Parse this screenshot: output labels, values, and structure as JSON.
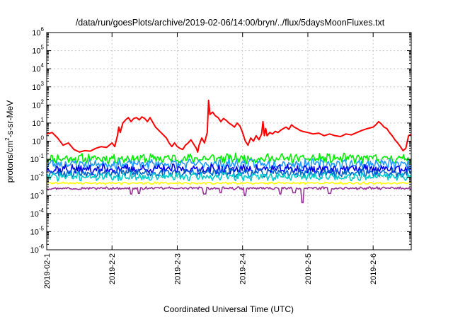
{
  "chart_data": {
    "type": "line",
    "title": "/data/run/goesPlots/archive/2019-02-06/14:00/bryn/../flux/5daysMoonFluxes.txt",
    "xlabel": "Coordinated Universal Time (UTC)",
    "ylabel": "protons/cm²-s-sr-MeV",
    "ylabel_parts": {
      "base": "protons/cm",
      "sup": "2",
      "rest": "-s-sr-MeV"
    },
    "y_scale": "log",
    "ylim": [
      1e-06,
      1000000.0
    ],
    "y_ticks": [
      {
        "value": 1e-06,
        "base": "10",
        "exp": "-6"
      },
      {
        "value": 1e-05,
        "base": "10",
        "exp": "-5"
      },
      {
        "value": 0.0001,
        "base": "10",
        "exp": "-4"
      },
      {
        "value": 0.001,
        "base": "10",
        "exp": "-3"
      },
      {
        "value": 0.01,
        "base": "10",
        "exp": "-2"
      },
      {
        "value": 0.1,
        "base": "10",
        "exp": "-1"
      },
      {
        "value": 1,
        "base": "10",
        "exp": "0"
      },
      {
        "value": 10,
        "base": "10",
        "exp": "1"
      },
      {
        "value": 100,
        "base": "10",
        "exp": "2"
      },
      {
        "value": 1000,
        "base": "10",
        "exp": "3"
      },
      {
        "value": 10000,
        "base": "10",
        "exp": "4"
      },
      {
        "value": 100000,
        "base": "10",
        "exp": "5"
      },
      {
        "value": 1000000,
        "base": "10",
        "exp": "6"
      }
    ],
    "xlim": [
      "2019-02-01",
      "2019-02-06T14:00"
    ],
    "x_ticks": [
      {
        "value": "2019-02-01",
        "label": "2019-02-1"
      },
      {
        "value": "2019-02-02",
        "label": "2019-2-2"
      },
      {
        "value": "2019-02-03",
        "label": "2019-2-3"
      },
      {
        "value": "2019-02-04",
        "label": "2019-2-4"
      },
      {
        "value": "2019-02-05",
        "label": "2019-2-5"
      },
      {
        "value": "2019-02-06",
        "label": "2019-2-6"
      }
    ],
    "grid": true,
    "legend": "none",
    "series": [
      {
        "color": "#ff0000",
        "width": 2,
        "points": [
          [
            "2019-02-01T00:00",
            2.5
          ],
          [
            "2019-02-01T02:00",
            3.0
          ],
          [
            "2019-02-01T04:00",
            1.5
          ],
          [
            "2019-02-01T06:00",
            0.6
          ],
          [
            "2019-02-01T08:00",
            0.8
          ],
          [
            "2019-02-01T10:00",
            0.35
          ],
          [
            "2019-02-01T12:00",
            0.25
          ],
          [
            "2019-02-01T14:00",
            0.3
          ],
          [
            "2019-02-01T16:00",
            0.28
          ],
          [
            "2019-02-01T18:00",
            0.4
          ],
          [
            "2019-02-01T20:00",
            0.5
          ],
          [
            "2019-02-01T22:00",
            0.45
          ],
          [
            "2019-02-02T00:00",
            0.8
          ],
          [
            "2019-02-02T01:00",
            0.5
          ],
          [
            "2019-02-02T02:00",
            2.0
          ],
          [
            "2019-02-02T02:30",
            6.0
          ],
          [
            "2019-02-02T03:00",
            3.0
          ],
          [
            "2019-02-02T04:00",
            10.0
          ],
          [
            "2019-02-02T05:00",
            15.0
          ],
          [
            "2019-02-02T06:00",
            20.0
          ],
          [
            "2019-02-02T07:00",
            12.0
          ],
          [
            "2019-02-02T08:00",
            18.0
          ],
          [
            "2019-02-02T09:00",
            20.0
          ],
          [
            "2019-02-02T10:00",
            15.0
          ],
          [
            "2019-02-02T11:00",
            22.0
          ],
          [
            "2019-02-02T12:00",
            18.0
          ],
          [
            "2019-02-02T13:00",
            12.0
          ],
          [
            "2019-02-02T14:00",
            20.0
          ],
          [
            "2019-02-02T16:00",
            6.0
          ],
          [
            "2019-02-02T18:00",
            3.0
          ],
          [
            "2019-02-02T20:00",
            1.5
          ],
          [
            "2019-02-02T21:00",
            0.8
          ],
          [
            "2019-02-02T22:00",
            0.5
          ],
          [
            "2019-02-02T23:00",
            0.8
          ],
          [
            "2019-02-03T00:00",
            0.5
          ],
          [
            "2019-02-03T01:00",
            0.4
          ],
          [
            "2019-02-03T02:00",
            0.35
          ],
          [
            "2019-02-03T03:00",
            0.6
          ],
          [
            "2019-02-03T04:00",
            0.8
          ],
          [
            "2019-02-03T05:00",
            1.2
          ],
          [
            "2019-02-03T06:00",
            0.7
          ],
          [
            "2019-02-03T07:00",
            0.4
          ],
          [
            "2019-02-03T07:30",
            0.25
          ],
          [
            "2019-02-03T08:00",
            0.6
          ],
          [
            "2019-02-03T09:00",
            1.5
          ],
          [
            "2019-02-03T10:00",
            0.8
          ],
          [
            "2019-02-03T11:00",
            3.0
          ],
          [
            "2019-02-03T11:30",
            180.0
          ],
          [
            "2019-02-03T12:00",
            30.0
          ],
          [
            "2019-02-03T13:00",
            40.0
          ],
          [
            "2019-02-03T14:00",
            25.0
          ],
          [
            "2019-02-03T15:00",
            20.0
          ],
          [
            "2019-02-03T16:00",
            12.0
          ],
          [
            "2019-02-03T17:00",
            18.0
          ],
          [
            "2019-02-03T18:00",
            14.0
          ],
          [
            "2019-02-03T19:00",
            10.0
          ],
          [
            "2019-02-03T20:00",
            8.0
          ],
          [
            "2019-02-03T21:00",
            6.0
          ],
          [
            "2019-02-03T22:00",
            10.0
          ],
          [
            "2019-02-03T23:00",
            7.0
          ],
          [
            "2019-02-04T00:00",
            3.0
          ],
          [
            "2019-02-04T01:00",
            1.0
          ],
          [
            "2019-02-04T02:00",
            0.6
          ],
          [
            "2019-02-04T03:00",
            1.5
          ],
          [
            "2019-02-04T04:00",
            1.0
          ],
          [
            "2019-02-04T05:00",
            2.0
          ],
          [
            "2019-02-04T06:00",
            1.2
          ],
          [
            "2019-02-04T07:00",
            2.5
          ],
          [
            "2019-02-04T07:30",
            12.0
          ],
          [
            "2019-02-04T08:00",
            2.0
          ],
          [
            "2019-02-04T08:30",
            5.0
          ],
          [
            "2019-02-04T09:00",
            2.0
          ],
          [
            "2019-02-04T10:00",
            3.0
          ],
          [
            "2019-02-04T11:00",
            2.5
          ],
          [
            "2019-02-04T12:00",
            3.5
          ],
          [
            "2019-02-04T13:00",
            3.0
          ],
          [
            "2019-02-04T14:00",
            4.0
          ],
          [
            "2019-02-04T15:00",
            5.0
          ],
          [
            "2019-02-04T16:00",
            6.0
          ],
          [
            "2019-02-04T17:00",
            4.5
          ],
          [
            "2019-02-04T18:00",
            8.0
          ],
          [
            "2019-02-04T19:00",
            6.0
          ],
          [
            "2019-02-04T20:00",
            5.0
          ],
          [
            "2019-02-04T21:00",
            4.0
          ],
          [
            "2019-02-04T22:00",
            3.5
          ],
          [
            "2019-02-05T00:00",
            3.0
          ],
          [
            "2019-02-05T02:00",
            2.5
          ],
          [
            "2019-02-05T04:00",
            2.8
          ],
          [
            "2019-02-05T06:00",
            2.0
          ],
          [
            "2019-02-05T08:00",
            2.5
          ],
          [
            "2019-02-05T10:00",
            2.0
          ],
          [
            "2019-02-05T12:00",
            1.8
          ],
          [
            "2019-02-05T14:00",
            2.5
          ],
          [
            "2019-02-05T16:00",
            2.2
          ],
          [
            "2019-02-05T18:00",
            3.0
          ],
          [
            "2019-02-05T20:00",
            4.0
          ],
          [
            "2019-02-05T22:00",
            5.0
          ],
          [
            "2019-02-06T00:00",
            6.0
          ],
          [
            "2019-02-06T01:00",
            8.0
          ],
          [
            "2019-02-06T02:00",
            12.0
          ],
          [
            "2019-02-06T03:00",
            9.0
          ],
          [
            "2019-02-06T04:00",
            6.0
          ],
          [
            "2019-02-06T05:00",
            5.0
          ],
          [
            "2019-02-06T06:00",
            3.0
          ],
          [
            "2019-02-06T07:00",
            2.0
          ],
          [
            "2019-02-06T08:00",
            1.2
          ],
          [
            "2019-02-06T09:00",
            0.8
          ],
          [
            "2019-02-06T10:00",
            0.5
          ],
          [
            "2019-02-06T11:00",
            0.3
          ],
          [
            "2019-02-06T12:00",
            0.4
          ],
          [
            "2019-02-06T13:00",
            2.0
          ],
          [
            "2019-02-06T14:00",
            2.5
          ]
        ]
      },
      {
        "color": "#00ee00",
        "width": 1.6,
        "base": 0.11,
        "jitter": 0.22,
        "seed": 11,
        "dips": []
      },
      {
        "color": "#2299ff",
        "width": 1.6,
        "base": 0.055,
        "jitter": 0.22,
        "seed": 23,
        "dips": []
      },
      {
        "color": "#0000ee",
        "width": 1.6,
        "base": 0.028,
        "jitter": 0.22,
        "seed": 37,
        "dips": []
      },
      {
        "color": "#0066cc",
        "width": 1.6,
        "base": 0.018,
        "jitter": 0.2,
        "seed": 53,
        "dips": []
      },
      {
        "color": "#00cccc",
        "width": 1.6,
        "base": 0.011,
        "jitter": 0.18,
        "seed": 71,
        "dips": []
      },
      {
        "color": "#ffff00",
        "width": 1.6,
        "base": 0.0048,
        "jitter": 0.05,
        "seed": 89,
        "dips": []
      },
      {
        "color": "#993399",
        "width": 1.6,
        "base": 0.0025,
        "jitter": 0.06,
        "seed": 97,
        "dips": [
          [
            "2019-02-02T07:00",
            0.0012
          ],
          [
            "2019-02-02T10:00",
            0.0013
          ],
          [
            "2019-02-03T10:00",
            0.0012
          ],
          [
            "2019-02-03T16:00",
            0.0014
          ],
          [
            "2019-02-04T01:00",
            0.001
          ],
          [
            "2019-02-04T14:00",
            0.0012
          ],
          [
            "2019-02-04T19:00",
            0.0014
          ],
          [
            "2019-02-04T22:00",
            0.0004
          ],
          [
            "2019-02-05T08:00",
            0.0013
          ]
        ]
      }
    ]
  }
}
